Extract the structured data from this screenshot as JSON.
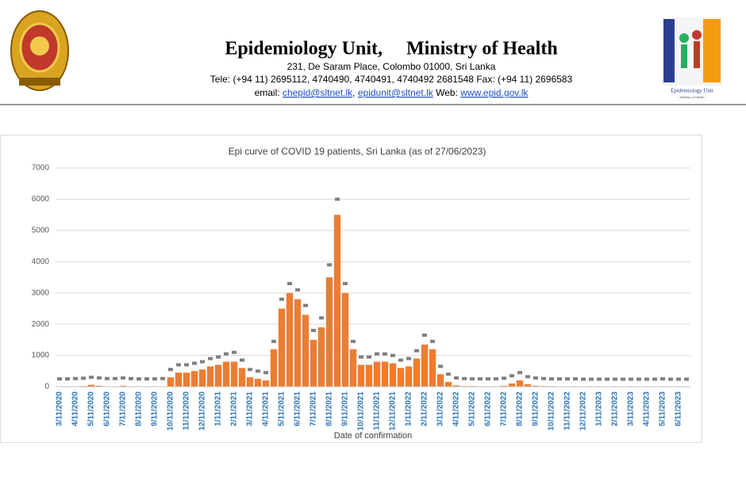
{
  "header": {
    "title": "Epidemiology Unit,     Ministry of Health",
    "address": "231, De Saram Place, Colombo 01000, Sri Lanka",
    "phone": "Tele: (+94 11) 2695112, 4740490, 4740491, 4740492 2681548  Fax: (+94 11) 2696583",
    "email_label": "email:",
    "emails": [
      "chepid@sltnet.lk",
      "epidunit@sltnet.lk"
    ],
    "separator": ",",
    "web_label": "Web:",
    "web": "www.epid.gov.lk",
    "logo_title": "Epidemiology Unit",
    "logo_subtitle": "Ministry of Health"
  },
  "chart_data": {
    "type": "bar",
    "title": "Epi curve of COVID 19 patients, Sri Lanka  (as of 27/06/2023)",
    "x_label": "Date of confirmation",
    "categories": [
      "3/11/2020",
      null,
      "4/11/2020",
      null,
      "5/11/2020",
      null,
      "6/11/2020",
      null,
      "7/11/2020",
      null,
      "8/11/2020",
      null,
      "9/11/2020",
      null,
      "10/11/2020",
      null,
      "11/11/2020",
      null,
      "12/11/2020",
      null,
      "1/11/2021",
      null,
      "2/11/2021",
      null,
      "3/11/2021",
      null,
      "4/11/2021",
      null,
      "5/11/2021",
      null,
      "6/11/2021",
      null,
      "7/11/2021",
      null,
      "8/11/2021",
      null,
      "9/11/2021",
      null,
      "10/11/2021",
      null,
      "11/11/2021",
      null,
      "12/11/2021",
      null,
      "1/11/2022",
      null,
      "2/11/2022",
      null,
      "3/11/2022",
      null,
      "4/11/2022",
      null,
      "5/11/2022",
      null,
      "6/11/2022",
      null,
      "7/11/2022",
      null,
      "8/11/2022",
      null,
      "9/11/2022",
      null,
      "10/11/2022",
      null,
      "11/11/2022",
      null,
      "12/11/2022",
      null,
      "1/11/2023",
      null,
      "2/11/2023",
      null,
      "3/11/2023",
      null,
      "4/11/2023",
      null,
      "5/11/2023",
      null,
      "6/11/2023",
      null
    ],
    "series": [
      {
        "color": "#ed7d31",
        "values": [
          5,
          0,
          10,
          20,
          60,
          30,
          10,
          10,
          30,
          10,
          5,
          5,
          5,
          10,
          300,
          450,
          450,
          500,
          550,
          650,
          700,
          800,
          800,
          600,
          300,
          250,
          200,
          1200,
          2500,
          3000,
          2800,
          2300,
          1500,
          1900,
          3500,
          5500,
          3000,
          1200,
          700,
          700,
          800,
          800,
          750,
          600,
          650,
          900,
          1350,
          1200,
          400,
          150,
          40,
          20,
          20,
          10,
          10,
          10,
          30,
          100,
          200,
          80,
          30,
          20,
          15,
          10,
          10,
          8,
          5,
          5,
          5,
          5,
          5,
          5,
          5,
          5,
          5,
          5,
          10,
          5,
          5,
          5
        ]
      },
      {
        "color": "#7f7f7f",
        "values": [
          250,
          250,
          260,
          270,
          300,
          280,
          260,
          260,
          280,
          260,
          250,
          250,
          250,
          260,
          550,
          700,
          700,
          750,
          800,
          900,
          950,
          1050,
          1100,
          850,
          550,
          500,
          450,
          1450,
          2800,
          3300,
          3100,
          2600,
          1800,
          2200,
          3900,
          6000,
          3300,
          1450,
          950,
          950,
          1050,
          1050,
          1000,
          850,
          900,
          1150,
          1650,
          1450,
          650,
          400,
          280,
          260,
          250,
          250,
          250,
          250,
          270,
          350,
          450,
          320,
          280,
          260,
          250,
          250,
          250,
          250,
          240,
          240,
          240,
          240,
          240,
          240,
          240,
          240,
          240,
          240,
          250,
          240,
          240,
          240
        ]
      }
    ],
    "ylim": [
      0,
      7000
    ],
    "yticks": [
      0,
      1000,
      2000,
      3000,
      4000,
      5000,
      6000,
      7000
    ],
    "grid": true,
    "axis_label_color": "#2e75b6"
  }
}
